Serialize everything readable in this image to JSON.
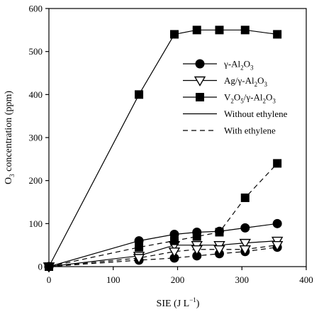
{
  "chart_data": {
    "type": "line",
    "xlabel_main": "SIE (J L",
    "xlabel_sup": "−1",
    "xlabel_end": ")",
    "ylabel_main": "O",
    "ylabel_sub": "3",
    "ylabel_end": " concentration (ppm)",
    "xlim": [
      0,
      400
    ],
    "ylim": [
      0,
      600
    ],
    "xticks": [
      0,
      100,
      200,
      300,
      400
    ],
    "yticks": [
      0,
      100,
      200,
      300,
      400,
      500,
      600
    ],
    "grid": false,
    "legend_placement": "right-middle",
    "legend": [
      {
        "marker": "circle",
        "parts": [
          {
            "t": "γ-Al"
          },
          {
            "t": "2",
            "sub": true
          },
          {
            "t": "O"
          },
          {
            "t": "3",
            "sub": true
          }
        ]
      },
      {
        "marker": "triangle-down-open",
        "parts": [
          {
            "t": "Ag/γ-Al"
          },
          {
            "t": "2",
            "sub": true
          },
          {
            "t": "O"
          },
          {
            "t": "3",
            "sub": true
          }
        ]
      },
      {
        "marker": "square",
        "parts": [
          {
            "t": "V"
          },
          {
            "t": "2",
            "sub": true
          },
          {
            "t": "O"
          },
          {
            "t": "5",
            "sub": true
          },
          {
            "t": "/γ-Al"
          },
          {
            "t": "2",
            "sub": true
          },
          {
            "t": "O"
          },
          {
            "t": "3",
            "sub": true
          }
        ]
      },
      {
        "line": "solid",
        "parts": [
          {
            "t": "Without ethylene"
          }
        ]
      },
      {
        "line": "dashed",
        "parts": [
          {
            "t": "With ethylene"
          }
        ]
      }
    ],
    "series": [
      {
        "catalyst": "gamma-Al2O3",
        "marker": "circle",
        "line": "solid",
        "x": [
          0,
          140,
          195,
          230,
          265,
          305,
          355
        ],
        "y": [
          0,
          60,
          75,
          80,
          82,
          90,
          100
        ]
      },
      {
        "catalyst": "Ag/gamma-Al2O3",
        "marker": "triangle-down-open",
        "line": "solid",
        "x": [
          0,
          140,
          195,
          230,
          265,
          305,
          355
        ],
        "y": [
          0,
          25,
          50,
          50,
          50,
          55,
          60
        ]
      },
      {
        "catalyst": "V2O5/gamma-Al2O3",
        "marker": "square",
        "line": "solid",
        "x": [
          0,
          140,
          195,
          230,
          265,
          305,
          355
        ],
        "y": [
          0,
          400,
          540,
          550,
          550,
          550,
          540
        ]
      },
      {
        "catalyst": "gamma-Al2O3",
        "marker": "circle",
        "line": "dashed",
        "x": [
          0,
          140,
          195,
          230,
          265,
          305,
          355
        ],
        "y": [
          0,
          15,
          20,
          25,
          30,
          35,
          45
        ]
      },
      {
        "catalyst": "Ag/gamma-Al2O3",
        "marker": "triangle-down-open",
        "line": "dashed",
        "x": [
          0,
          140,
          195,
          230,
          265,
          305,
          355
        ],
        "y": [
          0,
          20,
          35,
          40,
          40,
          40,
          50
        ]
      },
      {
        "catalyst": "V2O5/gamma-Al2O3",
        "marker": "square",
        "line": "dashed",
        "x": [
          0,
          140,
          195,
          230,
          265,
          305,
          355
        ],
        "y": [
          0,
          45,
          60,
          70,
          80,
          160,
          240
        ]
      }
    ]
  }
}
